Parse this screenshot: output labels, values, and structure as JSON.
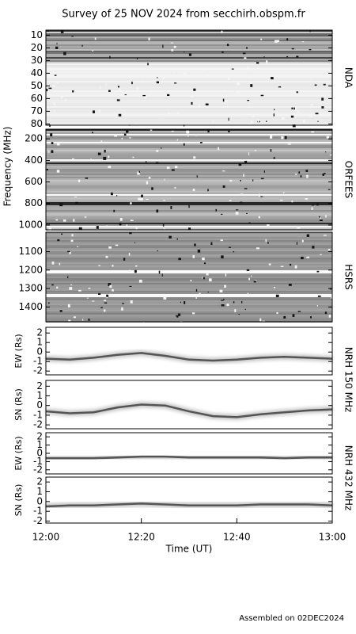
{
  "title": "Survey of 25 NOV 2024 from secchirh.obspm.fr",
  "y_label": "Frequency (MHz)",
  "x_label": "Time (UT)",
  "footer": "Assembled on 02DEC2024",
  "group_labels": [
    "NRH 150 MHz",
    "NRH 432 MHz"
  ],
  "time_axis": {
    "xlim": [
      0,
      60
    ],
    "xticks": [
      {
        "value": 0,
        "label": "12:00"
      },
      {
        "value": 20,
        "label": "12:20"
      },
      {
        "value": 40,
        "label": "12:40"
      },
      {
        "value": 60,
        "label": "13:00"
      }
    ]
  },
  "chart_data": [
    {
      "type": "spectrogram",
      "label": "NDA",
      "ylim": [
        81,
        6
      ],
      "yticks": [
        10,
        20,
        30,
        40,
        50,
        60,
        70,
        80
      ]
    },
    {
      "type": "spectrogram",
      "label": "ORFEES",
      "ylim": [
        1045,
        110
      ],
      "yticks": [
        200,
        400,
        600,
        800,
        1000
      ]
    },
    {
      "type": "spectrogram",
      "label": "HSRS",
      "ylim": [
        1480,
        995
      ],
      "yticks": [
        1100,
        1200,
        1300,
        1400
      ]
    },
    {
      "type": "line",
      "ylabel": "EW (Rs)",
      "ylim": [
        -2.4,
        2.6
      ],
      "yticks": [
        -2,
        -1,
        0,
        1,
        2
      ],
      "x": [
        0,
        5,
        10,
        15,
        20,
        25,
        30,
        35,
        40,
        45,
        50,
        55,
        60
      ],
      "series": [
        {
          "color": "#555555",
          "values": [
            -0.7,
            -0.8,
            -0.6,
            -0.3,
            -0.1,
            -0.4,
            -0.8,
            -0.9,
            -0.8,
            -0.6,
            -0.5,
            -0.6,
            -0.7
          ]
        }
      ]
    },
    {
      "type": "line",
      "ylabel": "SN (Rs)",
      "ylim": [
        -2.4,
        2.6
      ],
      "yticks": [
        -2,
        -1,
        0,
        1,
        2
      ],
      "x": [
        0,
        5,
        10,
        15,
        20,
        25,
        30,
        35,
        40,
        45,
        50,
        55,
        60
      ],
      "series": [
        {
          "color": "#555555",
          "values": [
            -0.6,
            -0.8,
            -0.7,
            -0.2,
            0.1,
            0.0,
            -0.6,
            -1.1,
            -1.2,
            -0.9,
            -0.7,
            -0.5,
            -0.4
          ]
        }
      ]
    },
    {
      "type": "line",
      "ylabel": "EW (Rs)",
      "ylim": [
        -2.5,
        2.5
      ],
      "yticks": [
        -2,
        -1,
        0,
        1,
        2
      ],
      "x": [
        0,
        5,
        10,
        15,
        20,
        25,
        30,
        35,
        40,
        45,
        50,
        55,
        60
      ],
      "series": [
        {
          "color": "#555555",
          "values": [
            -0.6,
            -0.6,
            -0.6,
            -0.5,
            -0.4,
            -0.4,
            -0.5,
            -0.5,
            -0.5,
            -0.5,
            -0.6,
            -0.5,
            -0.5
          ]
        }
      ]
    },
    {
      "type": "line",
      "ylabel": "SN (Rs)",
      "ylim": [
        -2.2,
        2.5
      ],
      "yticks": [
        -2,
        -1,
        0,
        1,
        2
      ],
      "x": [
        0,
        5,
        10,
        15,
        20,
        25,
        30,
        35,
        40,
        45,
        50,
        55,
        60
      ],
      "series": [
        {
          "color": "#555555",
          "values": [
            -0.5,
            -0.4,
            -0.4,
            -0.3,
            -0.2,
            -0.3,
            -0.4,
            -0.4,
            -0.4,
            -0.3,
            -0.3,
            -0.3,
            -0.4
          ]
        }
      ]
    }
  ]
}
